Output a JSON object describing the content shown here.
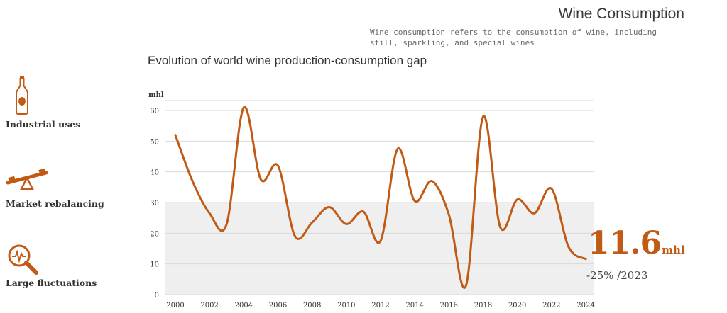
{
  "header": {
    "title": "Wine Consumption",
    "description": "Wine consumption refers to the consumption of wine, including still, sparkling, and special wines"
  },
  "sidebar": {
    "items": [
      {
        "label": "Industrial uses",
        "icon": "wine-bottle-icon"
      },
      {
        "label": "Market rebalancing",
        "icon": "seesaw-icon"
      },
      {
        "label": "Large fluctuations",
        "icon": "magnifier-pulse-icon"
      }
    ]
  },
  "colors": {
    "accent": "#c05a14",
    "band": "#efefef",
    "grid": "#d9d9d9"
  },
  "chart_data": {
    "type": "line",
    "title": "Evolution of world wine production-consumption gap",
    "ylabel": "mhl",
    "xlabel": "",
    "ylim": [
      0,
      60
    ],
    "yticks": [
      0,
      10,
      20,
      30,
      40,
      50,
      60
    ],
    "xlim": [
      2000,
      2024
    ],
    "xticks": [
      2000,
      2002,
      2004,
      2006,
      2008,
      2010,
      2012,
      2014,
      2016,
      2018,
      2020,
      2022,
      2024
    ],
    "grid": true,
    "highlight_band": [
      0,
      30
    ],
    "series": [
      {
        "x": [
          2000,
          2001,
          2002,
          2003,
          2004,
          2005,
          2006,
          2007,
          2008,
          2009,
          2010,
          2011,
          2012,
          2013,
          2014,
          2015,
          2016,
          2017,
          2018,
          2019,
          2020,
          2021,
          2022,
          2023,
          2024
        ],
        "values": [
          52,
          37,
          26.5,
          23,
          61,
          37.5,
          42,
          19,
          23.5,
          28.5,
          23,
          27,
          17.5,
          47.5,
          30.5,
          37,
          26,
          3,
          58,
          22,
          31,
          26.5,
          34.5,
          15.5,
          11.6
        ]
      }
    ]
  },
  "callout": {
    "value": "11.6",
    "unit": "mhl",
    "change": "-25% /2023"
  }
}
